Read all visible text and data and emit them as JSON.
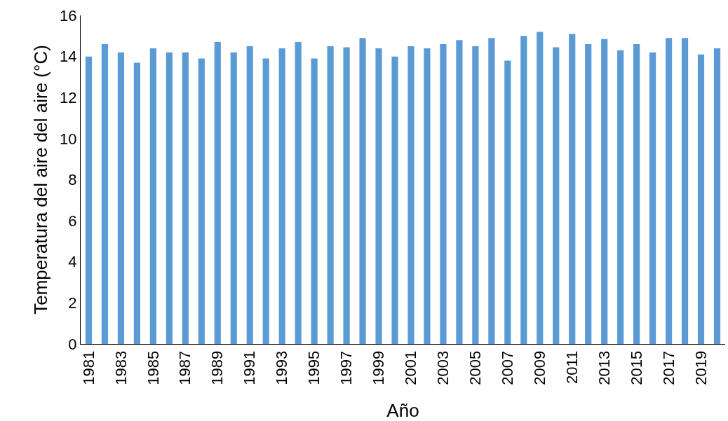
{
  "chart_data": {
    "type": "bar",
    "xlabel": "Año",
    "ylabel": "Temperatura del aire del aire (°C)",
    "categories": [
      "1981",
      null,
      "1983",
      null,
      "1985",
      null,
      "1987",
      null,
      "1989",
      null,
      "1991",
      null,
      "1993",
      null,
      "1995",
      null,
      "1997",
      null,
      "1999",
      null,
      "2001",
      null,
      "2003",
      null,
      "2005",
      null,
      "2007",
      null,
      "2009",
      null,
      "2011",
      null,
      "2013",
      null,
      "2015",
      null,
      "2017",
      null,
      "2019",
      null
    ],
    "values": [
      14.0,
      14.6,
      14.2,
      13.7,
      14.4,
      14.2,
      14.2,
      13.9,
      14.7,
      14.2,
      14.5,
      13.9,
      14.4,
      14.7,
      13.9,
      14.5,
      14.45,
      14.9,
      14.4,
      14.0,
      14.5,
      14.4,
      14.6,
      14.8,
      14.5,
      14.9,
      13.8,
      15.0,
      15.2,
      14.45,
      15.1,
      14.6,
      14.85,
      14.3,
      14.6,
      14.2,
      14.9,
      14.9,
      14.1,
      14.4
    ],
    "color": "#5b9bd5",
    "ylim": [
      0,
      16
    ],
    "yticks": [
      0,
      2,
      4,
      6,
      8,
      10,
      12,
      14,
      16
    ]
  }
}
